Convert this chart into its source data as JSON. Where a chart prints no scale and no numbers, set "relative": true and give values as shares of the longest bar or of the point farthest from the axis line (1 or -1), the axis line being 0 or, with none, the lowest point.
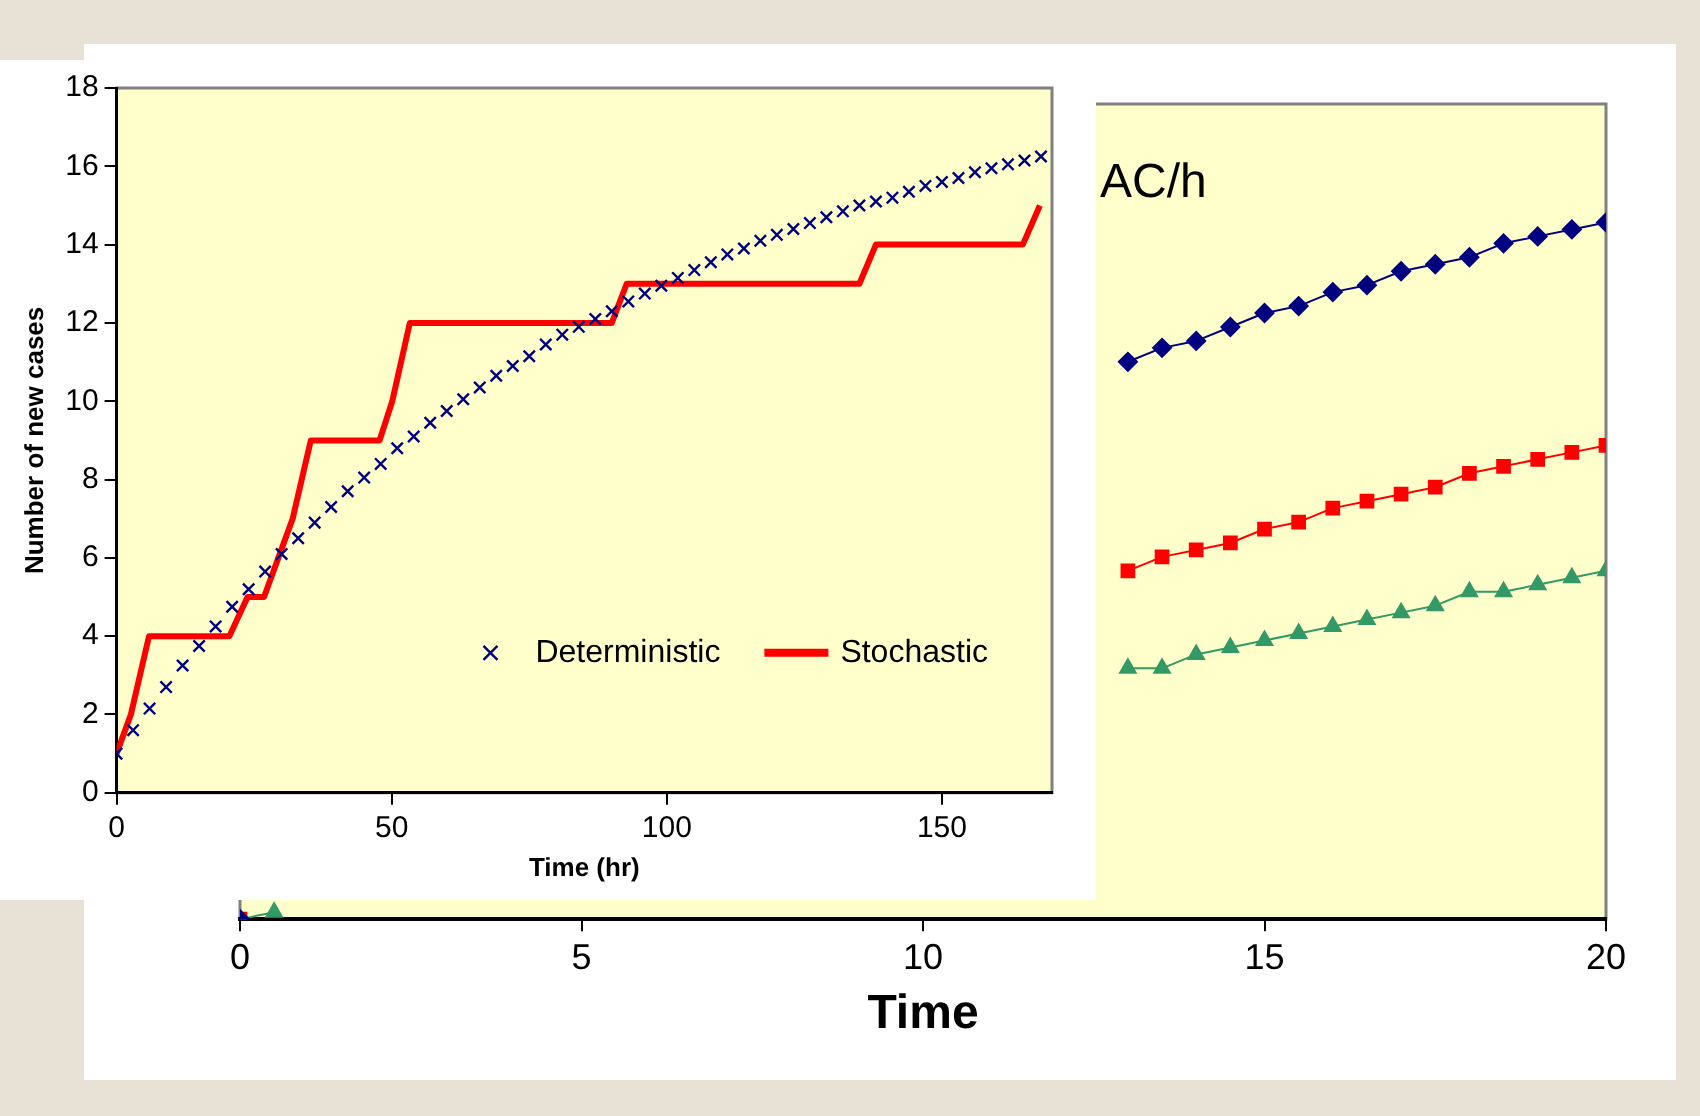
{
  "chart_data": [
    {
      "type": "line",
      "relative": true,
      "xlabel": "Time",
      "annotations": [
        "AC/h"
      ],
      "xlim": [
        0,
        20
      ],
      "xticks": [
        0,
        5,
        10,
        15,
        20
      ],
      "grid": false,
      "x": [
        0,
        0.5,
        1,
        1.5,
        2,
        2.5,
        3,
        3.5,
        4,
        4.5,
        5,
        5.5,
        6,
        6.5,
        7,
        7.5,
        8,
        8.5,
        9,
        9.5,
        10,
        10.5,
        11,
        11.5,
        12,
        12.5,
        13,
        13.5,
        14,
        14.5,
        15,
        15.5,
        16,
        16.5,
        17,
        17.5,
        18,
        18.5,
        19,
        19.5,
        20
      ],
      "series": [
        {
          "color": "#000080",
          "marker": "diamond",
          "values": [
            0,
            null,
            null,
            null,
            null,
            null,
            null,
            null,
            null,
            null,
            null,
            null,
            null,
            null,
            null,
            null,
            null,
            null,
            null,
            null,
            null,
            null,
            null,
            null,
            null,
            null,
            0.8,
            0.82,
            0.83,
            0.85,
            0.87,
            0.88,
            0.9,
            0.91,
            0.93,
            0.94,
            0.95,
            0.97,
            0.98,
            0.99,
            1
          ]
        },
        {
          "color": "#ff0000",
          "marker": "square",
          "values": [
            0,
            null,
            null,
            null,
            null,
            null,
            null,
            null,
            null,
            null,
            null,
            null,
            null,
            null,
            null,
            null,
            null,
            null,
            null,
            null,
            null,
            null,
            null,
            null,
            null,
            null,
            0.5,
            0.52,
            0.53,
            0.54,
            0.56,
            0.57,
            0.59,
            0.6,
            0.61,
            0.62,
            0.64,
            0.65,
            0.66,
            0.67,
            0.68
          ]
        },
        {
          "color": "#339966",
          "marker": "triangle",
          "values": [
            0,
            0.01,
            null,
            null,
            null,
            null,
            null,
            null,
            null,
            null,
            null,
            null,
            null,
            null,
            null,
            null,
            null,
            null,
            null,
            null,
            null,
            null,
            null,
            null,
            null,
            null,
            0.36,
            0.36,
            0.38,
            0.39,
            0.4,
            0.41,
            0.42,
            0.43,
            0.44,
            0.45,
            0.47,
            0.47,
            0.48,
            0.49,
            0.5
          ]
        }
      ]
    },
    {
      "type": "line",
      "xlabel": "Time (hr)",
      "ylabel": "Number of new cases",
      "xlim": [
        0,
        170
      ],
      "xticks": [
        0,
        50,
        100,
        150
      ],
      "ylim": [
        0,
        18
      ],
      "yticks": [
        0,
        2,
        4,
        6,
        8,
        10,
        12,
        14,
        16,
        18
      ],
      "grid": false,
      "legend": "bottom right",
      "series": [
        {
          "name": "Deterministic",
          "type": "scatter",
          "color": "#000080",
          "marker": "cross",
          "x": [
            0,
            3,
            6,
            9,
            12,
            15,
            18,
            21,
            24,
            27,
            30,
            33,
            36,
            39,
            42,
            45,
            48,
            51,
            54,
            57,
            60,
            63,
            66,
            69,
            72,
            75,
            78,
            81,
            84,
            87,
            90,
            93,
            96,
            99,
            102,
            105,
            108,
            111,
            114,
            117,
            120,
            123,
            126,
            129,
            132,
            135,
            138,
            141,
            144,
            147,
            150,
            153,
            156,
            159,
            162,
            165,
            168
          ],
          "values": [
            1,
            1.6,
            2.15,
            2.7,
            3.25,
            3.75,
            4.25,
            4.75,
            5.2,
            5.65,
            6.1,
            6.5,
            6.9,
            7.3,
            7.7,
            8.05,
            8.4,
            8.8,
            9.1,
            9.45,
            9.75,
            10.05,
            10.35,
            10.65,
            10.9,
            11.15,
            11.45,
            11.7,
            11.9,
            12.1,
            12.3,
            12.55,
            12.75,
            12.95,
            13.15,
            13.35,
            13.55,
            13.75,
            13.9,
            14.1,
            14.25,
            14.4,
            14.55,
            14.7,
            14.85,
            15,
            15.1,
            15.2,
            15.35,
            15.5,
            15.6,
            15.7,
            15.85,
            15.95,
            16.05,
            16.15,
            16.25
          ]
        },
        {
          "name": "Stochastic",
          "type": "line",
          "color": "#ff0000",
          "marker": "none",
          "x": [
            0,
            2.6,
            5.9,
            20.5,
            23.8,
            26.8,
            32,
            35.3,
            47.8,
            50.1,
            53.3,
            90,
            92.7,
            135,
            138,
            164.7,
            167.8
          ],
          "values": [
            1,
            2,
            4,
            4,
            5,
            5,
            7,
            9,
            9,
            10,
            12,
            12,
            13,
            13,
            14,
            14,
            15
          ]
        }
      ]
    }
  ]
}
